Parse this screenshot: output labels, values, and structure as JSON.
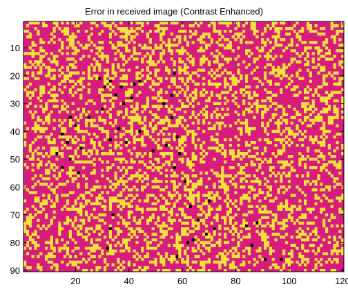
{
  "chart_data": {
    "type": "heatmap",
    "title": "Error in received image (Contrast Enhanced)",
    "xlabel": "",
    "ylabel": "",
    "xlim": [
      0.5,
      120.5
    ],
    "ylim": [
      0.5,
      90.5
    ],
    "x_ticks": [
      20,
      40,
      60,
      80,
      100,
      120
    ],
    "y_ticks": [
      10,
      20,
      30,
      40,
      50,
      60,
      70,
      80,
      90
    ],
    "x_tick_labels": [
      "20",
      "40",
      "60",
      "80",
      "100",
      "120"
    ],
    "y_tick_labels": [
      "10",
      "20",
      "30",
      "40",
      "50",
      "60",
      "70",
      "80",
      "90"
    ],
    "columns": 120,
    "rows": 90,
    "y_direction": "top-to-bottom",
    "grid": false,
    "colors": {
      "background": "#D81C7E",
      "error": "#F0E23C",
      "severe_error": "#000000",
      "axes": "#000000"
    },
    "error_fraction_approx": 0.32,
    "severe_error_cells": [
      [
        29,
        21
      ],
      [
        31,
        24
      ],
      [
        33,
        22
      ],
      [
        37,
        24
      ],
      [
        42,
        23
      ],
      [
        44,
        22
      ],
      [
        41,
        28
      ],
      [
        35,
        27
      ],
      [
        38,
        30
      ],
      [
        30,
        32
      ],
      [
        25,
        35
      ],
      [
        18,
        35
      ],
      [
        20,
        38
      ],
      [
        15,
        41
      ],
      [
        17,
        44
      ],
      [
        22,
        46
      ],
      [
        13,
        48
      ],
      [
        18,
        50
      ],
      [
        15,
        53
      ],
      [
        21,
        55
      ],
      [
        36,
        39
      ],
      [
        33,
        43
      ],
      [
        39,
        44
      ],
      [
        44,
        40
      ],
      [
        49,
        47
      ],
      [
        54,
        45
      ],
      [
        58,
        42
      ],
      [
        59,
        48
      ],
      [
        57,
        53
      ],
      [
        61,
        58
      ],
      [
        53,
        30
      ],
      [
        56,
        27
      ],
      [
        57,
        19
      ],
      [
        56,
        35
      ],
      [
        34,
        70
      ],
      [
        33,
        75
      ],
      [
        32,
        82
      ],
      [
        58,
        85
      ],
      [
        62,
        80
      ],
      [
        64,
        79
      ],
      [
        66,
        72
      ],
      [
        69,
        77
      ],
      [
        72,
        75
      ],
      [
        84,
        74
      ],
      [
        86,
        81
      ],
      [
        91,
        86
      ],
      [
        88,
        73
      ],
      [
        63,
        67
      ],
      [
        70,
        65
      ],
      [
        97,
        86
      ]
    ]
  }
}
